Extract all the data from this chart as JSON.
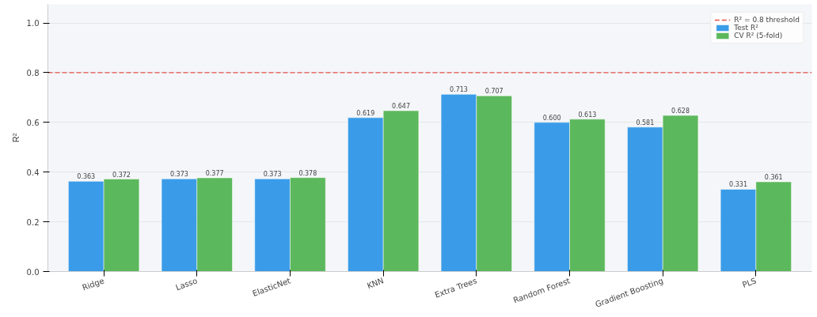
{
  "chart_data": {
    "type": "bar",
    "ylabel": "R²",
    "categories": [
      "Ridge",
      "Lasso",
      "ElasticNet",
      "KNN",
      "Extra Trees",
      "Random Forest",
      "Gradient Boosting",
      "PLS"
    ],
    "series": [
      {
        "name": "Test R²",
        "color": "#3a9ce8",
        "values": [
          0.363,
          0.373,
          0.373,
          0.619,
          0.713,
          0.6,
          0.581,
          0.331
        ],
        "value_labels": [
          "0.363",
          "0.373",
          "0.373",
          "0.619",
          "0.713",
          "0.600",
          "0.581",
          "0.331"
        ]
      },
      {
        "name": "CV R² (5-fold)",
        "color": "#5cb85c",
        "values": [
          0.372,
          0.377,
          0.378,
          0.647,
          0.707,
          0.613,
          0.628,
          0.361
        ],
        "value_labels": [
          "0.372",
          "0.377",
          "0.378",
          "0.647",
          "0.707",
          "0.613",
          "0.628",
          "0.361"
        ]
      }
    ],
    "ylim": [
      0,
      1.075
    ],
    "yticks": [
      {
        "value": 0,
        "label": "0.0"
      },
      {
        "value": 0.2,
        "label": "0.2"
      },
      {
        "value": 0.4,
        "label": "0.4"
      },
      {
        "value": 0.6,
        "label": "0.6"
      },
      {
        "value": 0.8,
        "label": "0.8"
      },
      {
        "value": 1,
        "label": "1.0"
      }
    ],
    "ref_lines": [
      {
        "axis": "y",
        "value": 0.8,
        "label": "R² = 0.8 threshold",
        "color": "#e8524a",
        "line_style": "dashed"
      }
    ],
    "grid": "y",
    "legend": "top right"
  }
}
